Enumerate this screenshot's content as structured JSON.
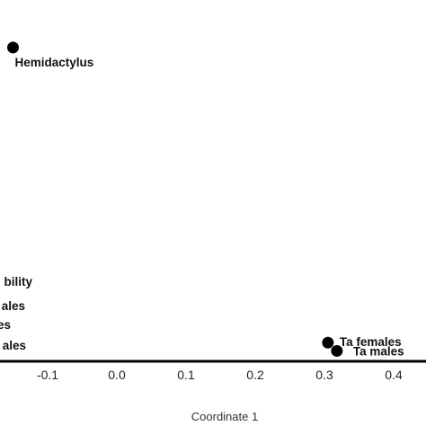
{
  "chart_data": {
    "type": "scatter",
    "xlabel": "Coordinate 1",
    "x_ticks": [
      "-0.1",
      "0.0",
      "0.1",
      "0.2",
      "0.3",
      "0.4"
    ],
    "x_tick_values": [
      -0.1,
      0.0,
      0.1,
      0.2,
      0.3,
      0.4
    ],
    "points": [
      {
        "label": "Hemidactylus",
        "x": -0.15,
        "y": 0.76
      },
      {
        "label": "Ta females",
        "x": 0.305,
        "y": 0.012
      },
      {
        "label": "Ta males",
        "x": 0.318,
        "y": -0.009
      }
    ],
    "cut_off_labels": [
      "bility",
      "ales",
      "es",
      "ales"
    ],
    "grid": false,
    "legend": "none",
    "colors": {
      "points": "#000000",
      "axis": "#000000"
    }
  }
}
